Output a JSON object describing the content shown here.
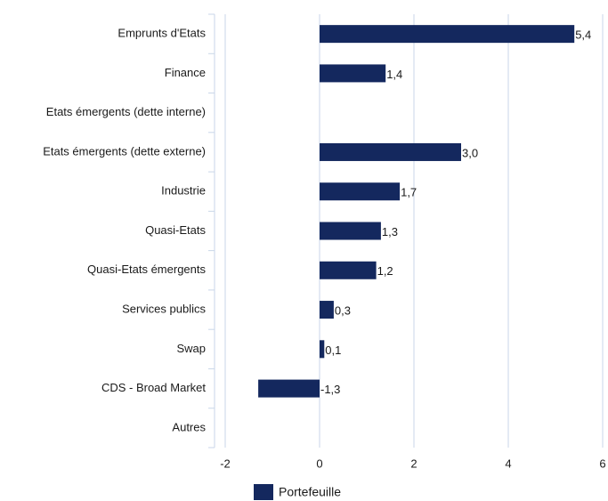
{
  "chart_data": {
    "type": "hbar",
    "categories": [
      "Emprunts d'Etats",
      "Finance",
      "Etats émergents (dette interne)",
      "Etats émergents (dette externe)",
      "Industrie",
      "Quasi-Etats",
      "Quasi-Etats émergents",
      "Services publics",
      "Swap",
      "CDS - Broad Market",
      "Autres"
    ],
    "series": [
      {
        "name": "Portefeuille",
        "color": "#14285e",
        "values": [
          5.4,
          1.4,
          null,
          3.0,
          1.7,
          1.3,
          1.2,
          0.3,
          0.1,
          -1.3,
          null
        ],
        "value_labels": [
          "5,4",
          "1,4",
          null,
          "3,0",
          "1,7",
          "1,3",
          "1,2",
          "0,3",
          "0,1",
          "-1,3",
          null
        ]
      }
    ],
    "xlim": [
      -2,
      6
    ],
    "xticks": [
      -2,
      0,
      2,
      4,
      6
    ],
    "grid": true,
    "legend": "bottom"
  }
}
